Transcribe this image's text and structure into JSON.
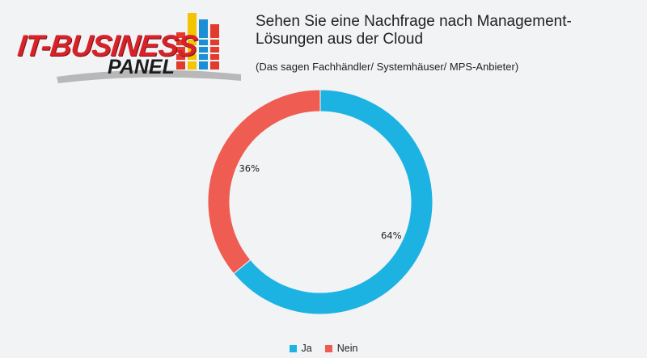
{
  "logo": {
    "line1": "IT-BUSINESS",
    "line2": "PANEL"
  },
  "chart_data": {
    "type": "pie",
    "variant": "donut",
    "title": "Sehen Sie eine Nachfrage nach Management-Lösungen aus der Cloud",
    "subtitle": "(Das sagen Fachhändler/ Systemhäuser/ MPS-Anbieter)",
    "categories": [
      "Ja",
      "Nein"
    ],
    "values": [
      64,
      36
    ],
    "labels": [
      "64%",
      "36%"
    ],
    "colors": [
      "#1cb3e3",
      "#ef5d52"
    ],
    "legend_position": "bottom"
  }
}
